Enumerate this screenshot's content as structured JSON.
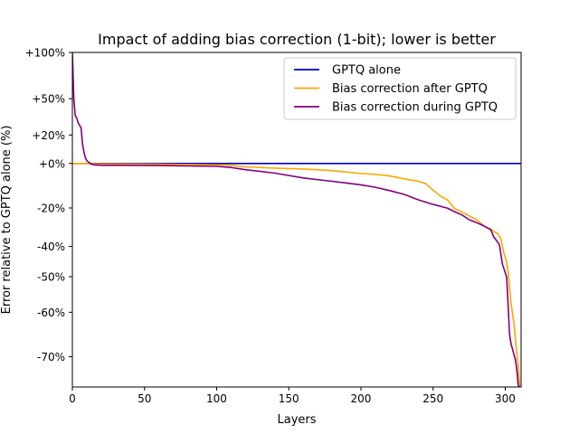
{
  "chart_data": {
    "type": "line",
    "title": "Impact of adding bias correction (1-bit); lower is better",
    "xlabel": "Layers",
    "ylabel": "Error relative to GPTQ alone (%)",
    "xlim": [
      0,
      311
    ],
    "x_ticks": [
      0,
      50,
      100,
      150,
      200,
      250,
      300
    ],
    "y_ticks": [
      {
        "label": "+100%",
        "value": 100
      },
      {
        "label": "+50%",
        "value": 50
      },
      {
        "label": "+20%",
        "value": 20
      },
      {
        "label": "+0%",
        "value": 0
      },
      {
        "label": "-20%",
        "value": -20
      },
      {
        "label": "-40%",
        "value": -40
      },
      {
        "label": "-50%",
        "value": -50
      },
      {
        "label": "-60%",
        "value": -60
      },
      {
        "label": "-70%",
        "value": -70
      }
    ],
    "y_scale_ref": [
      {
        "value": 100,
        "frac": 0.0
      },
      {
        "value": 50,
        "frac": 0.1383
      },
      {
        "value": 20,
        "frac": 0.2468
      },
      {
        "value": 0,
        "frac": 0.3319
      },
      {
        "value": -20,
        "frac": 0.4649
      },
      {
        "value": -40,
        "frac": 0.5798
      },
      {
        "value": -50,
        "frac": 0.6702
      },
      {
        "value": -60,
        "frac": 0.7766
      },
      {
        "value": -70,
        "frac": 0.9096
      },
      {
        "value": -75,
        "frac": 1.0
      }
    ],
    "legend_position": "top-right",
    "series": [
      {
        "name": "GPTQ alone",
        "color": "#0000cc",
        "x": [
          0,
          311
        ],
        "y": [
          0,
          0
        ]
      },
      {
        "name": "Bias correction after GPTQ",
        "color": "#ffa500",
        "x": [
          0,
          10,
          15,
          20,
          60,
          100,
          110,
          120,
          140,
          160,
          180,
          200,
          210,
          220,
          230,
          240,
          245,
          250,
          255,
          260,
          265,
          270,
          275,
          280,
          285,
          290,
          292,
          295,
          297,
          298,
          299,
          300,
          301,
          302,
          303,
          304,
          305,
          306,
          307,
          308,
          309,
          310
        ],
        "y": [
          0,
          0,
          -0.1,
          -0.2,
          -0.3,
          -0.6,
          -0.9,
          -1.5,
          -2.1,
          -2.5,
          -3.2,
          -4.5,
          -4.9,
          -5.6,
          -6.9,
          -8.0,
          -9.1,
          -12.0,
          -14.6,
          -16.4,
          -20.4,
          -22.1,
          -24.1,
          -26.0,
          -29.2,
          -31.0,
          -32.2,
          -33.4,
          -36.1,
          -39.8,
          -42.1,
          -43.5,
          -45.2,
          -48.4,
          -53.1,
          -57.5,
          -60.2,
          -62.3,
          -65.8,
          -69.2,
          -71.5,
          -74.8
        ]
      },
      {
        "name": "Bias correction during GPTQ",
        "color": "#800080",
        "x": [
          0,
          1,
          2,
          3,
          4,
          5,
          6,
          7,
          8,
          9,
          10,
          11,
          12,
          13,
          15,
          20,
          60,
          100,
          110,
          120,
          140,
          160,
          180,
          200,
          210,
          220,
          230,
          240,
          250,
          260,
          265,
          270,
          275,
          280,
          285,
          290,
          292,
          294,
          296,
          298,
          300,
          301,
          302,
          303,
          304,
          305,
          306,
          307,
          308,
          309,
          310
        ],
        "y": [
          100,
          50,
          36,
          34,
          30,
          28,
          26,
          14,
          8,
          4,
          2,
          1,
          0.5,
          -0.3,
          -0.6,
          -0.8,
          -0.9,
          -1.3,
          -1.8,
          -2.8,
          -4.3,
          -6.5,
          -8.0,
          -9.6,
          -10.7,
          -12.2,
          -13.9,
          -16.4,
          -18.4,
          -20.1,
          -22.0,
          -23.6,
          -26.1,
          -27.6,
          -29.3,
          -31.3,
          -35.0,
          -37.0,
          -39.2,
          -45.8,
          -48.7,
          -50.2,
          -58.1,
          -64.9,
          -67.1,
          -68.2,
          -69.5,
          -70.4,
          -72.1,
          -74.7,
          -75
        ]
      }
    ]
  }
}
